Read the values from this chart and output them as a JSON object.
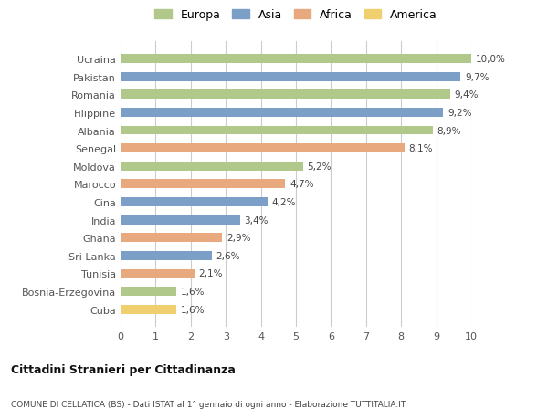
{
  "countries": [
    "Cuba",
    "Bosnia-Erzegovina",
    "Tunisia",
    "Sri Lanka",
    "Ghana",
    "India",
    "Cina",
    "Marocco",
    "Moldova",
    "Senegal",
    "Albania",
    "Filippine",
    "Romania",
    "Pakistan",
    "Ucraina"
  ],
  "values": [
    1.6,
    1.6,
    2.1,
    2.6,
    2.9,
    3.4,
    4.2,
    4.7,
    5.2,
    8.1,
    8.9,
    9.2,
    9.4,
    9.7,
    10.0
  ],
  "labels": [
    "1,6%",
    "1,6%",
    "2,1%",
    "2,6%",
    "2,9%",
    "3,4%",
    "4,2%",
    "4,7%",
    "5,2%",
    "8,1%",
    "8,9%",
    "9,2%",
    "9,4%",
    "9,7%",
    "10,0%"
  ],
  "continent": [
    "America",
    "Europa",
    "Africa",
    "Asia",
    "Africa",
    "Asia",
    "Asia",
    "Africa",
    "Europa",
    "Africa",
    "Europa",
    "Asia",
    "Europa",
    "Asia",
    "Europa"
  ],
  "colors": {
    "Europa": "#b0c98a",
    "Asia": "#7b9fc7",
    "Africa": "#e8a97e",
    "America": "#f0d06e"
  },
  "legend_order": [
    "Europa",
    "Asia",
    "Africa",
    "America"
  ],
  "xlim": [
    0,
    10
  ],
  "xticks": [
    0,
    1,
    2,
    3,
    4,
    5,
    6,
    7,
    8,
    9,
    10
  ],
  "title1": "Cittadini Stranieri per Cittadinanza",
  "title2": "COMUNE DI CELLATICA (BS) - Dati ISTAT al 1° gennaio di ogni anno - Elaborazione TUTTITALIA.IT",
  "bg_color": "#ffffff",
  "bar_height": 0.5,
  "grid_color": "#cccccc"
}
